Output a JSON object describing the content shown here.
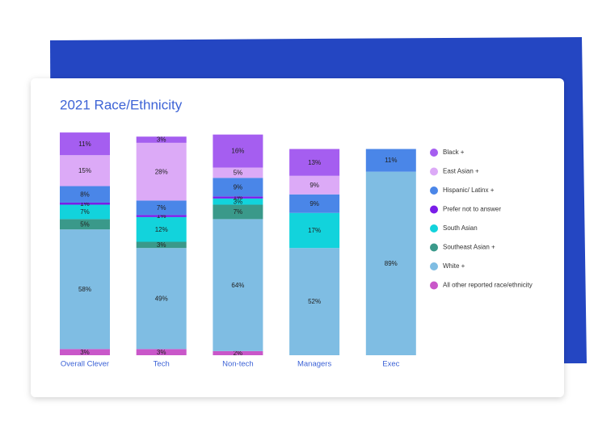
{
  "chart_data": {
    "type": "stacked_bar",
    "title": "2021 Race/Ethnicity",
    "categories": [
      "Overall Clever",
      "Tech",
      "Non-tech",
      "Managers",
      "Exec"
    ],
    "ylim": [
      0,
      110
    ],
    "series": [
      {
        "name": "Black +",
        "color": "#a55ef0",
        "values": [
          11,
          3,
          16,
          13,
          null
        ],
        "value_labels": [
          "11%",
          "3%",
          "16%",
          "13%",
          null
        ]
      },
      {
        "name": "East Asian +",
        "color": "#dcaaf7",
        "values": [
          15,
          28,
          5,
          9,
          null
        ],
        "value_labels": [
          "15%",
          "28%",
          "5%",
          "9%",
          null
        ]
      },
      {
        "name": "Hispanic/ Latinx +",
        "color": "#4a86e8",
        "values": [
          8,
          7,
          9,
          9,
          11
        ],
        "value_labels": [
          "8%",
          "7%",
          "9%",
          "9%",
          "11%"
        ]
      },
      {
        "name": "Prefer not to answer",
        "color": "#7a1de8",
        "values": [
          1,
          1,
          1,
          null,
          null
        ],
        "value_labels": [
          "1%",
          "1%",
          "1%",
          null,
          null
        ]
      },
      {
        "name": "South Asian",
        "color": "#12d3dc",
        "values": [
          7,
          12,
          3,
          17,
          null
        ],
        "value_labels": [
          "7%",
          "12%",
          "3%",
          "17%",
          null
        ]
      },
      {
        "name": "Southeast Asian +",
        "color": "#3a998a",
        "values": [
          5,
          3,
          7,
          null,
          null
        ],
        "value_labels": [
          "5%",
          "3%",
          "7%",
          null,
          null
        ]
      },
      {
        "name": "White +",
        "color": "#7fbde3",
        "values": [
          58,
          49,
          64,
          52,
          89
        ],
        "value_labels": [
          "58%",
          "49%",
          "64%",
          "52%",
          "89%"
        ]
      },
      {
        "name": "All other reported race/ethnicity",
        "color": "#c957c9",
        "values": [
          3,
          3,
          2,
          null,
          null
        ],
        "value_labels": [
          "3%",
          "3%",
          "2%",
          null,
          null
        ]
      }
    ]
  }
}
